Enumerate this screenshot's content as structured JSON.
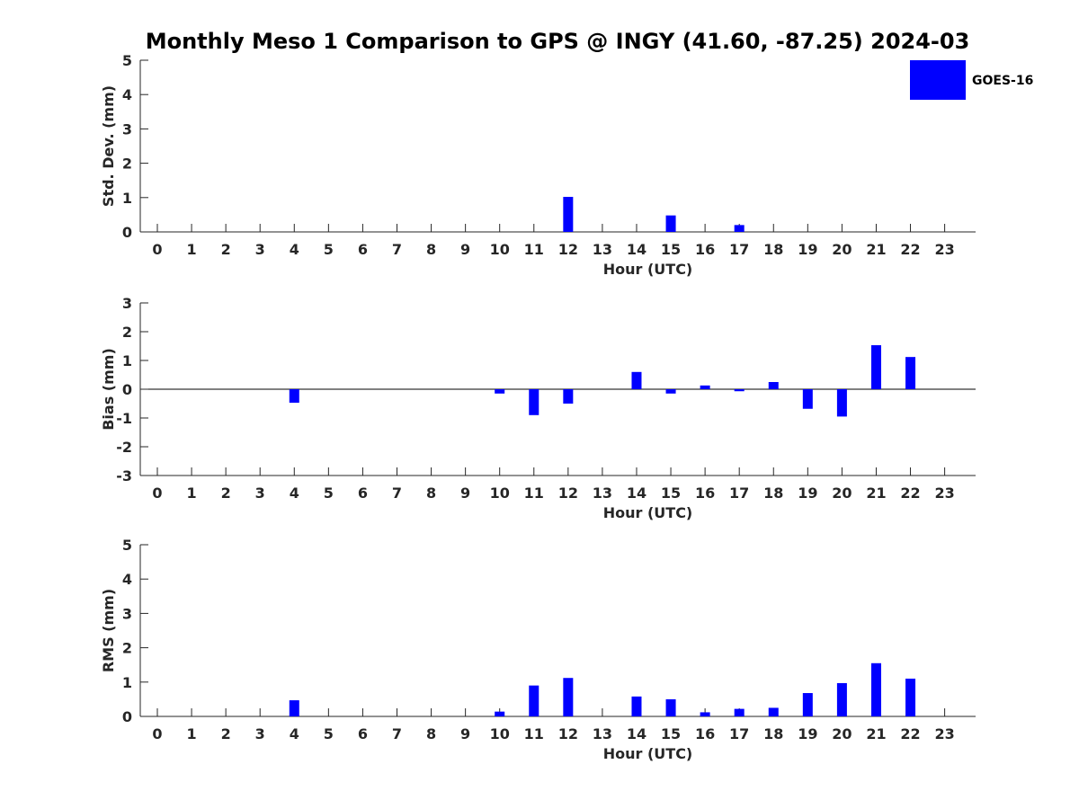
{
  "title": "Monthly Meso 1 Comparison to GPS @ INGY (41.60, -87.25) 2024-03",
  "legend": {
    "label": "GOES-16",
    "position": "top-right"
  },
  "colors": {
    "bar": "#0000ff",
    "axis": "#262626",
    "zero_line": "#000000"
  },
  "chart_data": [
    {
      "type": "bar",
      "xlabel": "Hour (UTC)",
      "ylabel": "Std. Dev. (mm)",
      "ylim": [
        0,
        5
      ],
      "yticks": [
        0,
        1,
        2,
        3,
        4,
        5
      ],
      "categories": [
        0,
        1,
        2,
        3,
        4,
        5,
        6,
        7,
        8,
        9,
        10,
        11,
        12,
        13,
        14,
        15,
        16,
        17,
        18,
        19,
        20,
        21,
        22,
        23
      ],
      "series": [
        {
          "name": "GOES-16",
          "values": [
            null,
            null,
            null,
            null,
            0,
            null,
            null,
            null,
            null,
            null,
            0,
            0,
            1.02,
            null,
            0,
            0.48,
            0,
            0.2,
            0,
            0,
            0,
            0,
            0,
            null
          ]
        }
      ],
      "grid": false
    },
    {
      "type": "bar",
      "xlabel": "Hour (UTC)",
      "ylabel": "Bias (mm)",
      "ylim": [
        -3,
        3
      ],
      "yticks": [
        -3,
        -2,
        -1,
        0,
        1,
        2,
        3
      ],
      "categories": [
        0,
        1,
        2,
        3,
        4,
        5,
        6,
        7,
        8,
        9,
        10,
        11,
        12,
        13,
        14,
        15,
        16,
        17,
        18,
        19,
        20,
        21,
        22,
        23
      ],
      "series": [
        {
          "name": "GOES-16",
          "values": [
            null,
            null,
            null,
            null,
            -0.47,
            null,
            null,
            null,
            null,
            null,
            -0.15,
            -0.9,
            -0.5,
            null,
            0.6,
            -0.15,
            0.13,
            -0.07,
            0.25,
            -0.68,
            -0.95,
            1.53,
            1.12,
            null
          ]
        }
      ],
      "grid": false
    },
    {
      "type": "bar",
      "xlabel": "Hour (UTC)",
      "ylabel": "RMS (mm)",
      "ylim": [
        0,
        5
      ],
      "yticks": [
        0,
        1,
        2,
        3,
        4,
        5
      ],
      "categories": [
        0,
        1,
        2,
        3,
        4,
        5,
        6,
        7,
        8,
        9,
        10,
        11,
        12,
        13,
        14,
        15,
        16,
        17,
        18,
        19,
        20,
        21,
        22,
        23
      ],
      "series": [
        {
          "name": "GOES-16",
          "values": [
            null,
            null,
            null,
            null,
            0.47,
            null,
            null,
            null,
            null,
            null,
            0.14,
            0.9,
            1.12,
            null,
            0.58,
            0.5,
            0.12,
            0.22,
            0.25,
            0.68,
            0.97,
            1.55,
            1.1,
            null
          ]
        }
      ],
      "grid": false
    }
  ]
}
